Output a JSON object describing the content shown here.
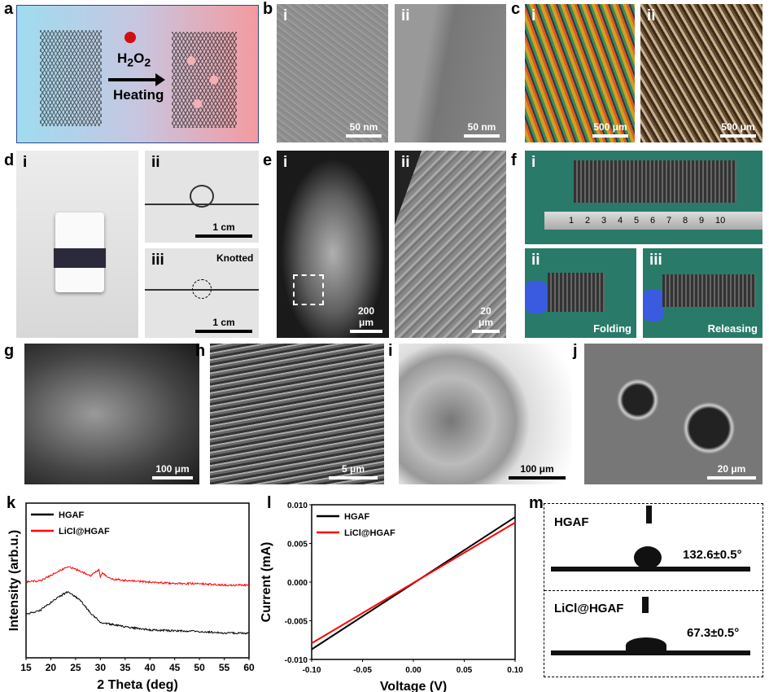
{
  "panels": {
    "a": {
      "label": "a",
      "reagent": "H2O2",
      "reagent_base": "H",
      "reagent_sub": "2",
      "reagent_o": "O",
      "reagent_sub2": "2",
      "process": "Heating"
    },
    "b": {
      "label": "b",
      "i": "i",
      "ii": "ii",
      "scale_i": "50 nm",
      "scale_ii": "50 nm"
    },
    "c": {
      "label": "c",
      "i": "i",
      "ii": "ii",
      "scale_i": "500 μm",
      "scale_ii": "500 μm"
    },
    "d": {
      "label": "d",
      "i": "i",
      "ii": "ii",
      "iii": "iii",
      "scale_ii": "1 cm",
      "scale_iii": "1 cm",
      "annotation": "Knotted"
    },
    "e": {
      "label": "e",
      "i": "i",
      "ii": "ii",
      "scale_i": "200 μm",
      "scale_ii": "20 μm"
    },
    "f": {
      "label": "f",
      "i": "i",
      "ii": "ii",
      "iii": "iii",
      "caption_ii": "Folding",
      "caption_iii": "Releasing",
      "ruler_numbers": [
        "1",
        "2",
        "3",
        "4",
        "5",
        "6",
        "7",
        "8",
        "9",
        "10"
      ]
    },
    "g": {
      "label": "g",
      "scale": "100 μm"
    },
    "h": {
      "label": "h",
      "scale": "5 μm"
    },
    "i": {
      "label": "i",
      "scale": "100 μm"
    },
    "j": {
      "label": "j",
      "scale": "20 μm"
    },
    "m": {
      "label": "m",
      "top_sample": "HGAF",
      "top_angle": "132.6±0.5°",
      "bottom_sample": "LiCl@HGAF",
      "bottom_angle": "67.3±0.5°"
    }
  },
  "chart_data": [
    {
      "panel": "k",
      "type": "line",
      "xlabel": "2 Theta (deg)",
      "ylabel": "Intensity (arb.u.)",
      "xlim": [
        15,
        60
      ],
      "ylim": [
        0,
        1
      ],
      "xticks": [
        "15",
        "20",
        "25",
        "30",
        "35",
        "40",
        "45",
        "50",
        "55",
        "60"
      ],
      "yticks": [],
      "legend": "top-left",
      "series": [
        {
          "name": "HGAF",
          "color": "#000000",
          "x": [
            15,
            18,
            21,
            23.5,
            26,
            28,
            30,
            35,
            40,
            45,
            50,
            55,
            60
          ],
          "y": [
            0.28,
            0.31,
            0.38,
            0.43,
            0.37,
            0.29,
            0.23,
            0.2,
            0.18,
            0.175,
            0.17,
            0.16,
            0.16
          ]
        },
        {
          "name": "LiCl@HGAF",
          "color": "#ff0000",
          "x": [
            15,
            18,
            21,
            23.5,
            26,
            28,
            29.7,
            30,
            30.4,
            32,
            35,
            40,
            45,
            50,
            55,
            60
          ],
          "y": [
            0.49,
            0.5,
            0.55,
            0.59,
            0.56,
            0.53,
            0.57,
            0.52,
            0.55,
            0.51,
            0.5,
            0.49,
            0.48,
            0.48,
            0.47,
            0.47
          ]
        }
      ]
    },
    {
      "panel": "l",
      "type": "line",
      "xlabel": "Voltage (V)",
      "ylabel": "Current (mA)",
      "xlim": [
        -0.1,
        0.1
      ],
      "ylim": [
        -0.01,
        0.01
      ],
      "xticks": [
        "-0.10",
        "-0.05",
        "0.00",
        "0.05",
        "0.10"
      ],
      "yticks": [
        "-0.010",
        "-0.005",
        "0.000",
        "0.005",
        "0.010"
      ],
      "legend": "top-left",
      "series": [
        {
          "name": "HGAF",
          "color": "#000000",
          "x": [
            -0.1,
            0.1
          ],
          "y": [
            -0.0087,
            0.0084
          ]
        },
        {
          "name": "LiCl@HGAF",
          "color": "#ff0000",
          "x": [
            -0.1,
            0.1
          ],
          "y": [
            -0.0079,
            0.0077
          ]
        }
      ]
    }
  ]
}
